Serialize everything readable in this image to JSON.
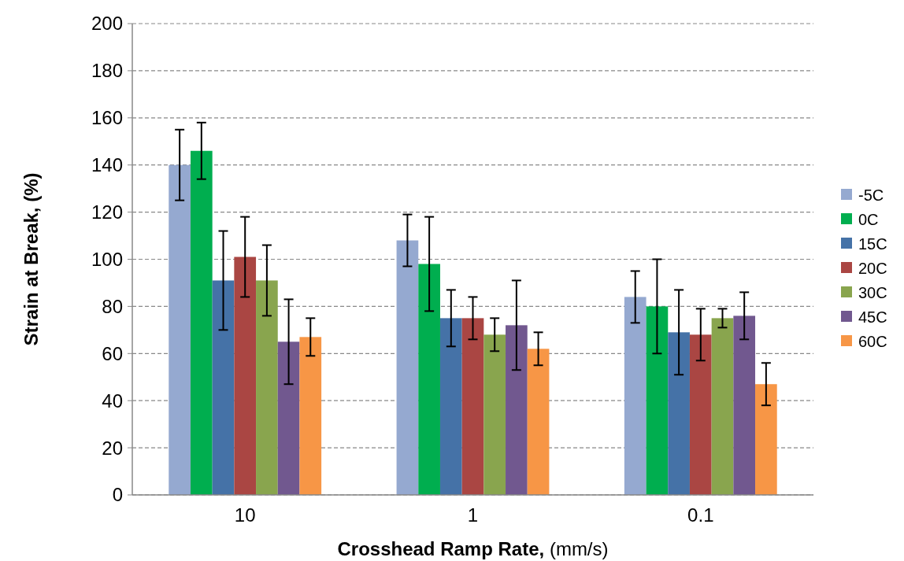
{
  "chart_data": {
    "type": "bar",
    "xlabel": "Crosshead Ramp Rate, (mm/s)",
    "ylabel": "Strain at Break, (%)",
    "categories": [
      "10",
      "1",
      "0.1"
    ],
    "series": [
      {
        "name": "-5C",
        "color": "#95a9d0",
        "values": [
          140,
          108,
          84
        ],
        "errors": [
          15,
          11,
          11
        ]
      },
      {
        "name": "0C",
        "color": "#00ae4f",
        "values": [
          146,
          98,
          80
        ],
        "errors": [
          12,
          20,
          20
        ]
      },
      {
        "name": "15C",
        "color": "#4572a7",
        "values": [
          91,
          75,
          69
        ],
        "errors": [
          21,
          12,
          18
        ]
      },
      {
        "name": "20C",
        "color": "#aa4643",
        "values": [
          101,
          75,
          68
        ],
        "errors": [
          17,
          9,
          11
        ]
      },
      {
        "name": "30C",
        "color": "#89a54e",
        "values": [
          91,
          68,
          75
        ],
        "errors": [
          15,
          7,
          4
        ]
      },
      {
        "name": "45C",
        "color": "#71588f",
        "values": [
          65,
          72,
          76
        ],
        "errors": [
          18,
          19,
          10
        ]
      },
      {
        "name": "60C",
        "color": "#f79646",
        "values": [
          67,
          62,
          47
        ],
        "errors": [
          8,
          7,
          9
        ]
      }
    ],
    "ylim": [
      0,
      200
    ],
    "yticks": [
      0,
      20,
      40,
      60,
      80,
      100,
      120,
      140,
      160,
      180,
      200
    ],
    "grid": "y",
    "legend": "right"
  }
}
